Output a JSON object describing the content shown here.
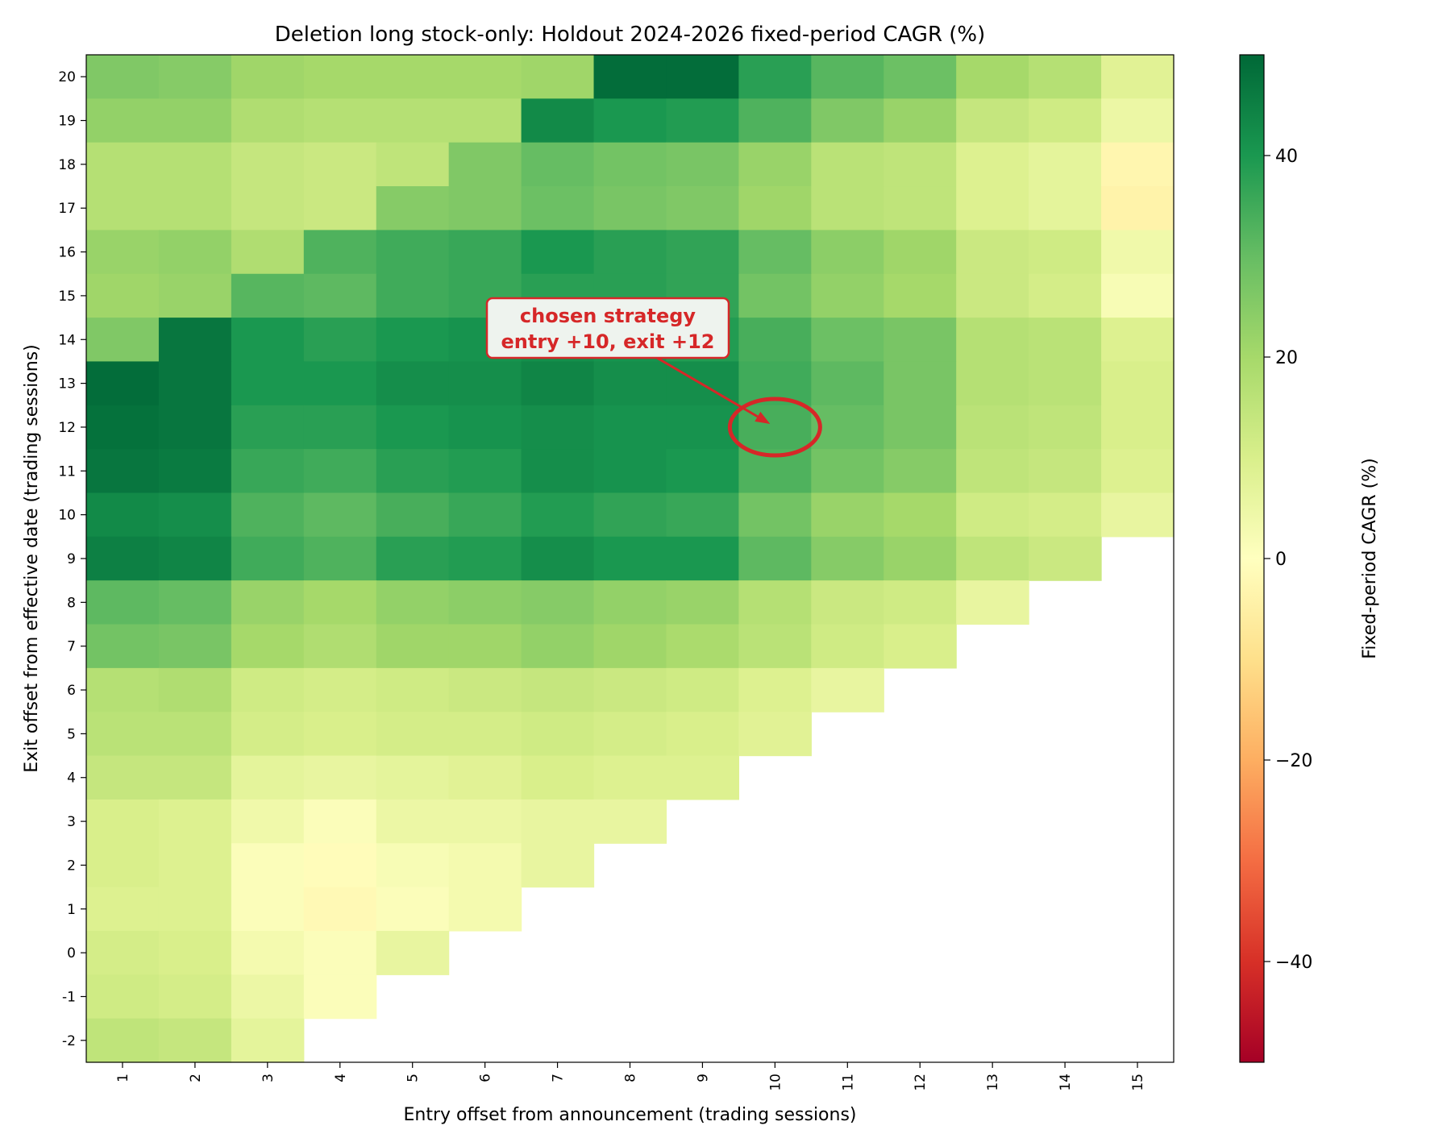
{
  "chart_data": {
    "type": "heatmap",
    "title": "Deletion long stock-only: Holdout 2024-2026 fixed-period CAGR (%)",
    "xlabel": "Entry offset from announcement (trading sessions)",
    "ylabel": "Exit offset from effective date (trading sessions)",
    "x": [
      1,
      2,
      3,
      4,
      5,
      6,
      7,
      8,
      9,
      10,
      11,
      12,
      13,
      14,
      15
    ],
    "y": [
      20,
      19,
      18,
      17,
      16,
      15,
      14,
      13,
      12,
      11,
      10,
      9,
      8,
      7,
      6,
      5,
      4,
      3,
      2,
      1,
      0,
      -1,
      -2
    ],
    "values": [
      [
        26,
        25,
        21,
        20,
        20,
        20,
        21,
        49,
        49,
        38,
        32,
        29,
        20,
        17,
        8
      ],
      [
        23,
        23,
        18,
        17,
        17,
        17,
        43,
        40,
        39,
        33,
        26,
        22,
        14,
        12,
        5
      ],
      [
        17,
        17,
        14,
        13,
        15,
        26,
        30,
        28,
        27,
        22,
        16,
        15,
        9,
        7,
        -3
      ],
      [
        17,
        17,
        14,
        13,
        25,
        26,
        29,
        27,
        26,
        21,
        16,
        15,
        9,
        7,
        -4
      ],
      [
        22,
        23,
        18,
        33,
        35,
        36,
        40,
        38,
        37,
        30,
        24,
        21,
        13,
        12,
        4
      ],
      [
        21,
        22,
        32,
        31,
        35,
        36,
        38,
        38,
        37,
        28,
        23,
        20,
        13,
        11,
        2
      ],
      [
        26,
        47,
        40,
        38,
        40,
        41,
        42,
        41,
        39,
        34,
        29,
        27,
        17,
        16,
        9
      ],
      [
        49,
        47,
        40,
        40,
        42,
        42,
        44,
        42,
        42,
        35,
        31,
        27,
        17,
        16,
        10
      ],
      [
        48,
        47,
        38,
        38,
        40,
        41,
        42,
        41,
        41,
        34,
        30,
        27,
        16,
        15,
        10
      ],
      [
        47,
        46,
        36,
        35,
        38,
        39,
        42,
        41,
        40,
        33,
        28,
        25,
        15,
        14,
        9
      ],
      [
        43,
        42,
        33,
        31,
        34,
        36,
        39,
        37,
        36,
        28,
        22,
        20,
        12,
        11,
        6
      ],
      [
        45,
        44,
        35,
        33,
        38,
        39,
        42,
        40,
        40,
        31,
        25,
        22,
        15,
        13,
        null
      ],
      [
        31,
        30,
        22,
        20,
        23,
        24,
        25,
        23,
        22,
        17,
        13,
        12,
        6,
        null,
        null
      ],
      [
        28,
        27,
        20,
        18,
        21,
        21,
        23,
        21,
        19,
        16,
        12,
        10,
        null,
        null,
        null
      ],
      [
        17,
        18,
        12,
        11,
        12,
        13,
        14,
        13,
        12,
        9,
        6,
        null,
        null,
        null,
        null
      ],
      [
        16,
        16,
        11,
        10,
        11,
        11,
        12,
        11,
        10,
        8,
        null,
        null,
        null,
        null,
        null
      ],
      [
        14,
        14,
        7,
        6,
        7,
        8,
        10,
        9,
        9,
        null,
        null,
        null,
        null,
        null,
        null
      ],
      [
        10,
        9,
        4,
        1,
        5,
        5,
        6,
        6,
        null,
        null,
        null,
        null,
        null,
        null,
        null
      ],
      [
        10,
        9,
        1,
        -1,
        2,
        3,
        6,
        null,
        null,
        null,
        null,
        null,
        null,
        null,
        null
      ],
      [
        9,
        9,
        1,
        -2,
        1,
        3,
        null,
        null,
        null,
        null,
        null,
        null,
        null,
        null,
        null
      ],
      [
        11,
        10,
        3,
        1,
        6,
        null,
        null,
        null,
        null,
        null,
        null,
        null,
        null,
        null,
        null
      ],
      [
        12,
        11,
        5,
        1,
        null,
        null,
        null,
        null,
        null,
        null,
        null,
        null,
        null,
        null,
        null
      ],
      [
        15,
        14,
        7,
        null,
        null,
        null,
        null,
        null,
        null,
        null,
        null,
        null,
        null,
        null,
        null
      ]
    ],
    "colormap": "RdYlGn",
    "vmin": -50,
    "vmax": 50,
    "colorbar": {
      "label": "Fixed-period CAGR (%)",
      "ticks": [
        40,
        20,
        0,
        -20,
        -40
      ],
      "tick_labels": [
        "40",
        "20",
        "0",
        "−20",
        "−40"
      ]
    },
    "x_tick_labels": [
      "1",
      "2",
      "3",
      "4",
      "5",
      "6",
      "7",
      "8",
      "9",
      "10",
      "11",
      "12",
      "13",
      "14",
      "15"
    ],
    "y_tick_labels": [
      "20",
      "19",
      "18",
      "17",
      "16",
      "15",
      "14",
      "13",
      "12",
      "11",
      "10",
      "9",
      "8",
      "7",
      "6",
      "5",
      "4",
      "3",
      "2",
      "1",
      "0",
      "-1",
      "-2"
    ],
    "annotation": {
      "line1": "chosen strategy",
      "line2": "entry +10, exit +12",
      "target_x": 10,
      "target_y": 12,
      "color": "#d62728"
    },
    "grid": false
  }
}
